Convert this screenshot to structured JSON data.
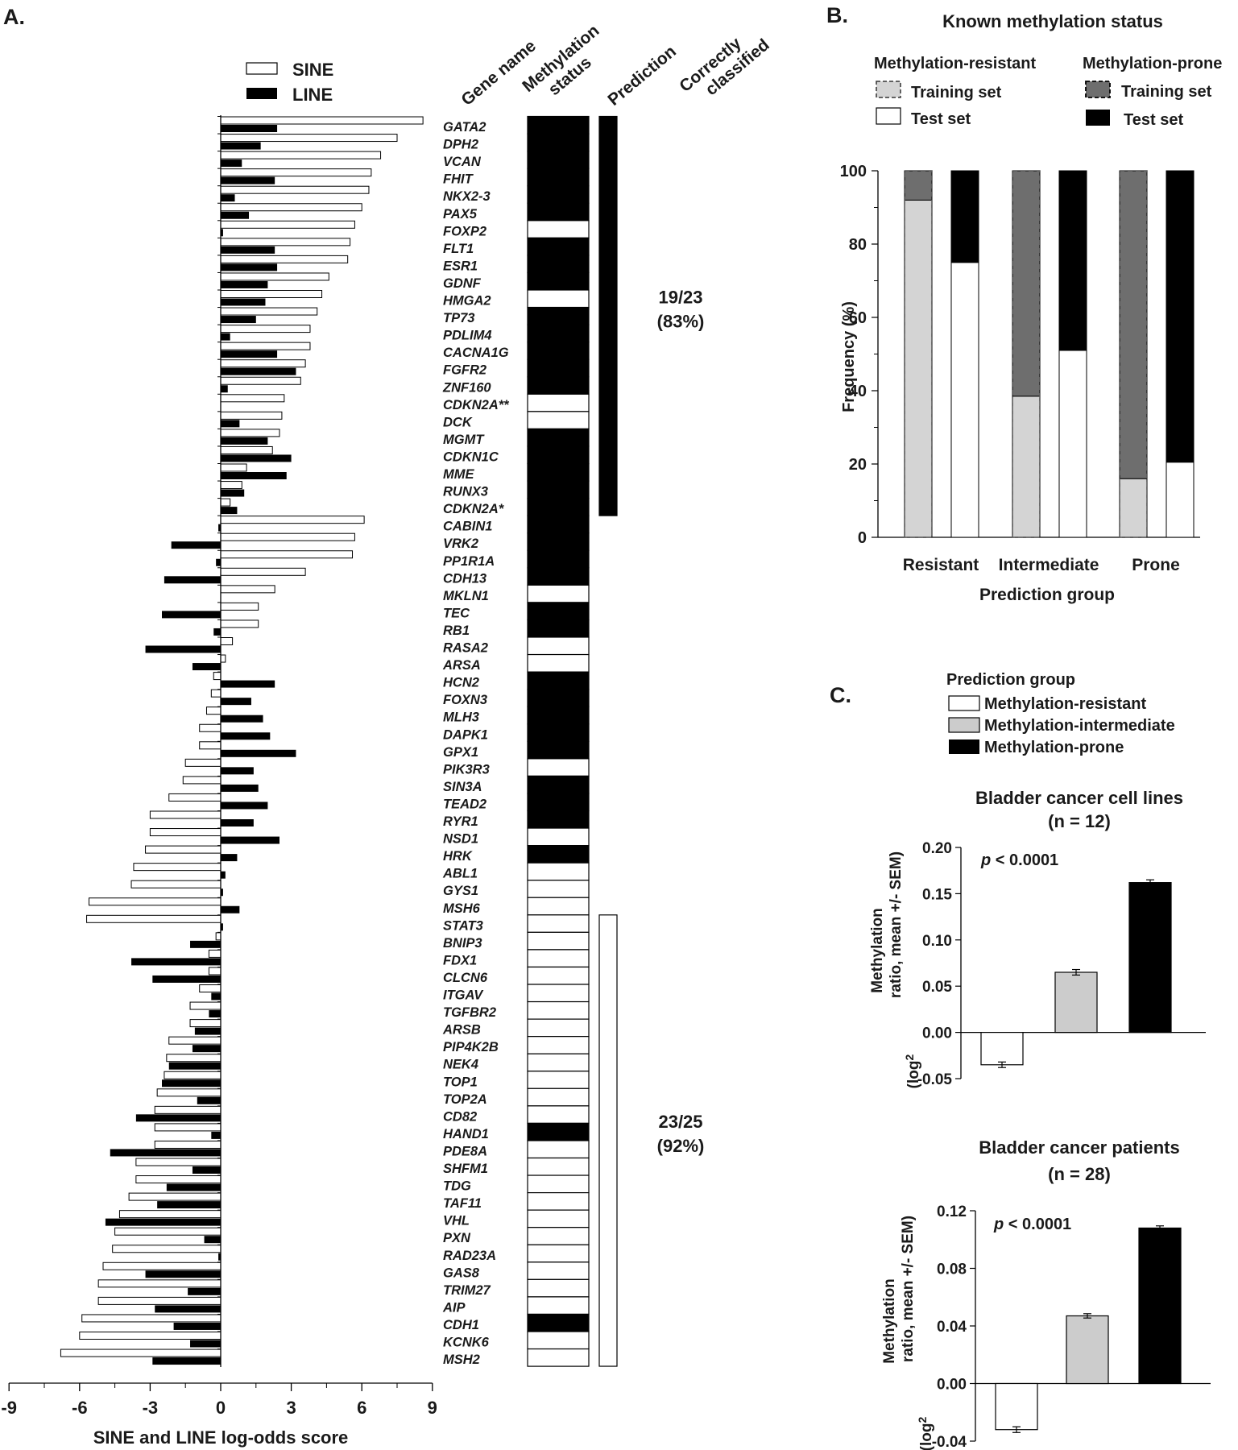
{
  "chart_data": [
    {
      "panel": "A.",
      "type": "bar",
      "orientation": "horizontal",
      "xlabel": "SINE and LINE log-odds score",
      "xlim": [
        -9,
        9
      ],
      "xticks": [
        -9,
        -6,
        -3,
        0,
        3,
        6,
        9
      ],
      "legend": {
        "placement": "top-left",
        "items": [
          {
            "label": "SINE",
            "color": "#ffffff"
          },
          {
            "label": "LINE",
            "color": "#000000"
          }
        ]
      },
      "column_headers": [
        "Gene name",
        "Methylation status",
        "Prediction",
        "Correctly classified"
      ],
      "genes": [
        {
          "name": "GATA2",
          "sine": 8.6,
          "line": 2.4,
          "meth": 1
        },
        {
          "name": "DPH2",
          "sine": 7.5,
          "line": 1.7,
          "meth": 1
        },
        {
          "name": "VCAN",
          "sine": 6.8,
          "line": 0.9,
          "meth": 1
        },
        {
          "name": "FHIT",
          "sine": 6.4,
          "line": 2.3,
          "meth": 1
        },
        {
          "name": "NKX2-3",
          "sine": 6.3,
          "line": 0.6,
          "meth": 1
        },
        {
          "name": "PAX5",
          "sine": 6.0,
          "line": 1.2,
          "meth": 1
        },
        {
          "name": "FOXP2",
          "sine": 5.7,
          "line": 0.1,
          "meth": 0
        },
        {
          "name": "FLT1",
          "sine": 5.5,
          "line": 2.3,
          "meth": 1
        },
        {
          "name": "ESR1",
          "sine": 5.4,
          "line": 2.4,
          "meth": 1
        },
        {
          "name": "GDNF",
          "sine": 4.6,
          "line": 2.0,
          "meth": 1
        },
        {
          "name": "HMGA2",
          "sine": 4.3,
          "line": 1.9,
          "meth": 0
        },
        {
          "name": "TP73",
          "sine": 4.1,
          "line": 1.5,
          "meth": 1
        },
        {
          "name": "PDLIM4",
          "sine": 3.8,
          "line": 0.4,
          "meth": 1
        },
        {
          "name": "CACNA1G",
          "sine": 3.8,
          "line": 2.4,
          "meth": 1
        },
        {
          "name": "FGFR2",
          "sine": 3.6,
          "line": 3.2,
          "meth": 1
        },
        {
          "name": "ZNF160",
          "sine": 3.4,
          "line": 0.3,
          "meth": 1
        },
        {
          "name": "CDKN2A**",
          "sine": 2.7,
          "line": 0.0,
          "meth": 0
        },
        {
          "name": "DCK",
          "sine": 2.6,
          "line": 0.8,
          "meth": 0
        },
        {
          "name": "MGMT",
          "sine": 2.5,
          "line": 2.0,
          "meth": 1
        },
        {
          "name": "CDKN1C",
          "sine": 2.2,
          "line": 3.0,
          "meth": 1
        },
        {
          "name": "MME",
          "sine": 1.1,
          "line": 2.8,
          "meth": 1
        },
        {
          "name": "RUNX3",
          "sine": 0.9,
          "line": 1.0,
          "meth": 1
        },
        {
          "name": "CDKN2A*",
          "sine": 0.4,
          "line": 0.7,
          "meth": 1
        },
        {
          "name": "CABIN1",
          "sine": 6.1,
          "line": -0.1,
          "meth": 1
        },
        {
          "name": "VRK2",
          "sine": 5.7,
          "line": -2.1,
          "meth": 1
        },
        {
          "name": "PP1R1A",
          "sine": 5.6,
          "line": -0.2,
          "meth": 1
        },
        {
          "name": "CDH13",
          "sine": 3.6,
          "line": -2.4,
          "meth": 1
        },
        {
          "name": "MKLN1",
          "sine": 2.3,
          "line": 0.0,
          "meth": 0
        },
        {
          "name": "TEC",
          "sine": 1.6,
          "line": -2.5,
          "meth": 1
        },
        {
          "name": "RB1",
          "sine": 1.6,
          "line": -0.3,
          "meth": 1
        },
        {
          "name": "RASA2",
          "sine": 0.5,
          "line": -3.2,
          "meth": 0
        },
        {
          "name": "ARSA",
          "sine": 0.2,
          "line": -1.2,
          "meth": 0
        },
        {
          "name": "HCN2",
          "sine": -0.3,
          "line": 2.3,
          "meth": 1
        },
        {
          "name": "FOXN3",
          "sine": -0.4,
          "line": 1.3,
          "meth": 1
        },
        {
          "name": "MLH3",
          "sine": -0.6,
          "line": 1.8,
          "meth": 1
        },
        {
          "name": "DAPK1",
          "sine": -0.9,
          "line": 2.1,
          "meth": 1
        },
        {
          "name": "GPX1",
          "sine": -0.9,
          "line": 3.2,
          "meth": 1
        },
        {
          "name": "PIK3R3",
          "sine": -1.5,
          "line": 1.4,
          "meth": 0
        },
        {
          "name": "SIN3A",
          "sine": -1.6,
          "line": 1.6,
          "meth": 1
        },
        {
          "name": "TEAD2",
          "sine": -2.2,
          "line": 2.0,
          "meth": 1
        },
        {
          "name": "RYR1",
          "sine": -3.0,
          "line": 1.4,
          "meth": 1
        },
        {
          "name": "NSD1",
          "sine": -3.0,
          "line": 2.5,
          "meth": 0
        },
        {
          "name": "HRK",
          "sine": -3.2,
          "line": 0.7,
          "meth": 1
        },
        {
          "name": "ABL1",
          "sine": -3.7,
          "line": 0.2,
          "meth": 0
        },
        {
          "name": "GYS1",
          "sine": -3.8,
          "line": 0.1,
          "meth": 0
        },
        {
          "name": "MSH6",
          "sine": -5.6,
          "line": 0.8,
          "meth": 0
        },
        {
          "name": "STAT3",
          "sine": -5.7,
          "line": 0.1,
          "meth": 0
        },
        {
          "name": "BNIP3",
          "sine": -0.2,
          "line": -1.3,
          "meth": 0
        },
        {
          "name": "FDX1",
          "sine": -0.5,
          "line": -3.8,
          "meth": 0
        },
        {
          "name": "CLCN6",
          "sine": -0.5,
          "line": -2.9,
          "meth": 0
        },
        {
          "name": "ITGAV",
          "sine": -0.9,
          "line": -0.4,
          "meth": 0
        },
        {
          "name": "TGFBR2",
          "sine": -1.3,
          "line": -0.5,
          "meth": 0
        },
        {
          "name": "ARSB",
          "sine": -1.3,
          "line": -1.1,
          "meth": 0
        },
        {
          "name": "PIP4K2B",
          "sine": -2.2,
          "line": -1.2,
          "meth": 0
        },
        {
          "name": "NEK4",
          "sine": -2.3,
          "line": -2.2,
          "meth": 0
        },
        {
          "name": "TOP1",
          "sine": -2.4,
          "line": -2.5,
          "meth": 0
        },
        {
          "name": "TOP2A",
          "sine": -2.7,
          "line": -1.0,
          "meth": 0
        },
        {
          "name": "CD82",
          "sine": -2.8,
          "line": -3.6,
          "meth": 0
        },
        {
          "name": "HAND1",
          "sine": -2.8,
          "line": -0.4,
          "meth": 1
        },
        {
          "name": "PDE8A",
          "sine": -2.8,
          "line": -4.7,
          "meth": 0
        },
        {
          "name": "SHFM1",
          "sine": -3.6,
          "line": -1.2,
          "meth": 0
        },
        {
          "name": "TDG",
          "sine": -3.6,
          "line": -2.3,
          "meth": 0
        },
        {
          "name": "TAF11",
          "sine": -3.9,
          "line": -2.7,
          "meth": 0
        },
        {
          "name": "VHL",
          "sine": -4.3,
          "line": -4.9,
          "meth": 0
        },
        {
          "name": "PXN",
          "sine": -4.5,
          "line": -0.7,
          "meth": 0
        },
        {
          "name": "RAD23A",
          "sine": -4.6,
          "line": -0.1,
          "meth": 0
        },
        {
          "name": "GAS8",
          "sine": -5.0,
          "line": -3.2,
          "meth": 0
        },
        {
          "name": "TRIM27",
          "sine": -5.2,
          "line": -1.4,
          "meth": 0
        },
        {
          "name": "AIP",
          "sine": -5.2,
          "line": -2.8,
          "meth": 0
        },
        {
          "name": "CDH1",
          "sine": -5.9,
          "line": -2.0,
          "meth": 1
        },
        {
          "name": "KCNK6",
          "sine": -6.0,
          "line": -1.3,
          "meth": 0
        },
        {
          "name": "MSH2",
          "sine": -6.8,
          "line": -2.9,
          "meth": 0
        }
      ],
      "prediction_groups": [
        {
          "from": "GATA2",
          "to": "CDKN2A*",
          "predicted": "prone",
          "correct": "19/23",
          "percent": "(83%)"
        },
        {
          "from": "STAT3",
          "to": "MSH2",
          "predicted": "resistant",
          "correct": "23/25",
          "percent": "(92%)"
        }
      ]
    },
    {
      "panel": "B.",
      "type": "bar",
      "stacked": true,
      "title": "Known methylation status",
      "xlabel": "Prediction group",
      "ylabel": "Frequency (%)",
      "ylim": [
        0,
        100
      ],
      "yticks": [
        0,
        20,
        40,
        60,
        80,
        100
      ],
      "categories": [
        "Resistant",
        "Intermediate",
        "Prone"
      ],
      "legend": {
        "placement": "top",
        "groups": [
          {
            "title": "Methylation-resistant",
            "items": [
              {
                "label": "Training set",
                "color": "#d4d4d4",
                "dashed": true
              },
              {
                "label": "Test set",
                "color": "#ffffff",
                "dashed": false
              }
            ]
          },
          {
            "title": "Methylation-prone",
            "items": [
              {
                "label": "Training set",
                "color": "#6e6e6e",
                "dashed": true
              },
              {
                "label": "Test set",
                "color": "#000000",
                "dashed": false
              }
            ]
          }
        ]
      },
      "bars": [
        {
          "category": "Resistant",
          "set": "Training set",
          "resistant": 92,
          "prone": 8
        },
        {
          "category": "Resistant",
          "set": "Test set",
          "resistant": 75,
          "prone": 25
        },
        {
          "category": "Intermediate",
          "set": "Training set",
          "resistant": 38.5,
          "prone": 61.5
        },
        {
          "category": "Intermediate",
          "set": "Test set",
          "resistant": 51,
          "prone": 49
        },
        {
          "category": "Prone",
          "set": "Training set",
          "resistant": 16,
          "prone": 84
        },
        {
          "category": "Prone",
          "set": "Test set",
          "resistant": 20.5,
          "prone": 79.5
        }
      ]
    },
    {
      "panel": "C.",
      "type": "bar",
      "legend": {
        "title": "Prediction group",
        "items": [
          {
            "label": "Methylation-resistant",
            "color": "#ffffff"
          },
          {
            "label": "Methylation-intermediate",
            "color": "#cccccc"
          },
          {
            "label": "Methylation-prone",
            "color": "#000000"
          }
        ]
      },
      "ylabel_parts": [
        "Methylation",
        "ratio, mean +/- SEM)",
        "(log",
        "2"
      ],
      "subcharts": [
        {
          "title": "Bladder cancer cell lines",
          "subtitle": "(n = 12)",
          "pvalue_prefix": "p",
          "pvalue_rest": " < 0.0001",
          "ylim": [
            -0.05,
            0.2
          ],
          "yticks": [
            -0.05,
            0.0,
            0.05,
            0.1,
            0.15,
            0.2
          ],
          "ytick_labels": [
            "-0.05",
            "0.00",
            "0.05",
            "0.10",
            "0.15",
            "0.20"
          ],
          "values": [
            -0.035,
            0.065,
            0.162
          ],
          "sem": [
            0.003,
            0.003,
            0.003
          ]
        },
        {
          "title": "Bladder cancer patients",
          "subtitle": "(n = 28)",
          "pvalue_prefix": "p",
          "pvalue_rest": " < 0.0001",
          "ylim": [
            -0.04,
            0.12
          ],
          "yticks": [
            -0.04,
            0.0,
            0.04,
            0.08,
            0.12
          ],
          "ytick_labels": [
            "-0.04",
            "0.00",
            "0.04",
            "0.08",
            "0.12"
          ],
          "values": [
            -0.032,
            0.047,
            0.108
          ],
          "sem": [
            0.002,
            0.0015,
            0.0015
          ]
        }
      ]
    }
  ]
}
